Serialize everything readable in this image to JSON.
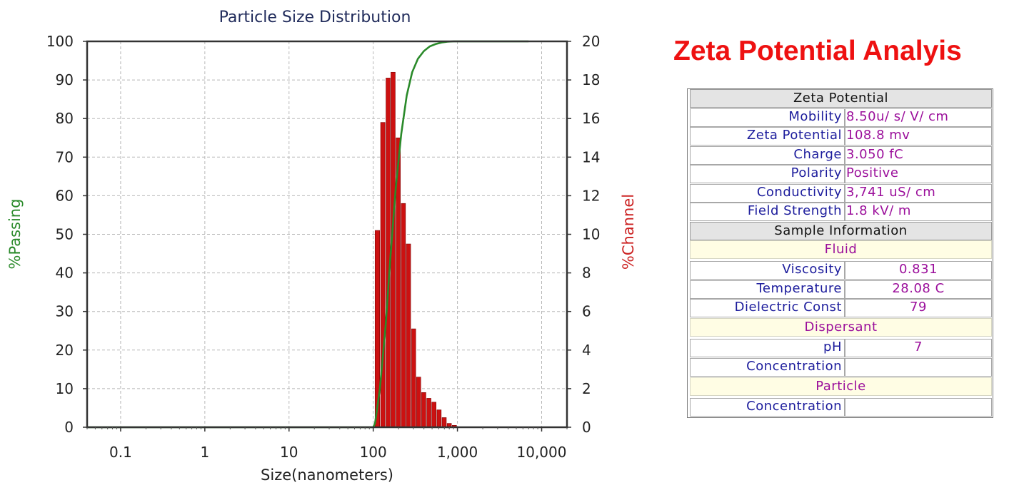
{
  "chart_data": {
    "type": "bar",
    "title": "Particle Size Distribution",
    "xlabel": "Size(nanometers)",
    "ylabel_left": "%Passing",
    "ylabel_right": "%Channel",
    "x_scale": "log",
    "xlim": [
      0.04,
      20000
    ],
    "ylim_left": [
      0,
      100
    ],
    "ylim_right": [
      0,
      20
    ],
    "x_ticks": [
      0.1,
      1,
      10,
      100,
      1000,
      10000
    ],
    "x_tick_labels": [
      "0.1",
      "1",
      "10",
      "100",
      "1,000",
      "10,000"
    ],
    "y_left_ticks": [
      0,
      10,
      20,
      30,
      40,
      50,
      60,
      70,
      80,
      90,
      100
    ],
    "y_right_ticks": [
      0,
      2,
      4,
      6,
      8,
      10,
      12,
      14,
      16,
      18,
      20
    ],
    "grid": true,
    "series": [
      {
        "name": "%Channel",
        "type": "bar",
        "axis": "right",
        "color": "#cc1111",
        "x": [
          112,
          130,
          150,
          172,
          198,
          228,
          262,
          302,
          346,
          398,
          458,
          526,
          605,
          696,
          800,
          920
        ],
        "values": [
          10.2,
          15.8,
          18.1,
          18.4,
          15.0,
          11.6,
          9.5,
          5.1,
          2.6,
          1.8,
          1.5,
          1.3,
          0.9,
          0.5,
          0.2,
          0.1
        ]
      },
      {
        "name": "%Passing",
        "type": "line",
        "axis": "left",
        "color": "#2a8a2a",
        "x": [
          0.04,
          50,
          100,
          105,
          120,
          140,
          160,
          185,
          215,
          250,
          290,
          340,
          400,
          470,
          550,
          650,
          760,
          900,
          1100,
          7000
        ],
        "values": [
          0,
          0,
          0,
          1,
          10,
          26,
          44,
          62,
          76,
          86,
          92,
          95.5,
          97.5,
          98.7,
          99.3,
          99.7,
          99.9,
          100,
          100,
          100
        ]
      }
    ]
  },
  "zeta": {
    "title": "Zeta Potential Analyis",
    "header": "Zeta Potential",
    "rows": [
      {
        "label": "Mobility",
        "value": "8.50u/ s/ V/ cm"
      },
      {
        "label": "Zeta Potential",
        "value": "108.8 mv"
      },
      {
        "label": "Charge",
        "value": "3.050 fC"
      },
      {
        "label": "Polarity",
        "value": "Positive"
      },
      {
        "label": "Conductivity",
        "value": "3,741 uS/ cm"
      },
      {
        "label": "Field Strength",
        "value": "1.8 kV/ m"
      }
    ],
    "sample_header": "Sample Information",
    "fluid_header": "Fluid",
    "fluid_rows": [
      {
        "label": "Viscosity",
        "value": "0.831"
      },
      {
        "label": "Temperature",
        "value": "28.08 C"
      },
      {
        "label": "Dielectric Const",
        "value": "79"
      }
    ],
    "dispersant_header": "Dispersant",
    "dispersant_rows": [
      {
        "label": "pH",
        "value": "7"
      },
      {
        "label": "Concentration",
        "value": ""
      }
    ],
    "particle_header": "Particle",
    "particle_rows": [
      {
        "label": "Concentration",
        "value": ""
      }
    ]
  }
}
